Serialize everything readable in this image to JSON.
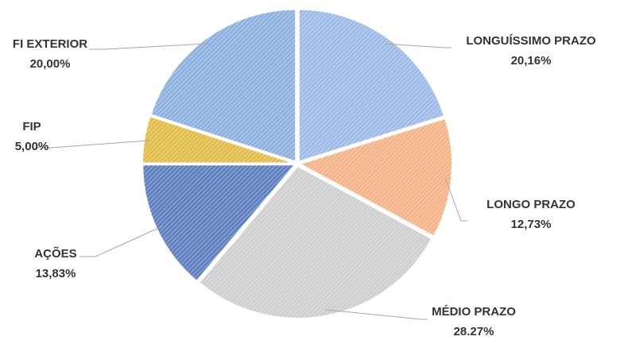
{
  "chart_data": {
    "type": "pie",
    "categories": [
      "LONGUÍSSIMO PRAZO",
      "LONGO PRAZO",
      "MÉDIO PRAZO",
      "AÇÕES",
      "FIP",
      "FI EXTERIOR"
    ],
    "values": [
      20.16,
      12.73,
      28.27,
      13.83,
      5.0,
      20.0
    ],
    "value_labels": [
      "20,16%",
      "12,73%",
      "28.27%",
      "13,83%",
      "5,00%",
      "20,00%"
    ],
    "colors": [
      "#9fbbe8",
      "#f5b488",
      "#cfcfcf",
      "#5e80bf",
      "#e3bd4a",
      "#8db2df"
    ]
  }
}
